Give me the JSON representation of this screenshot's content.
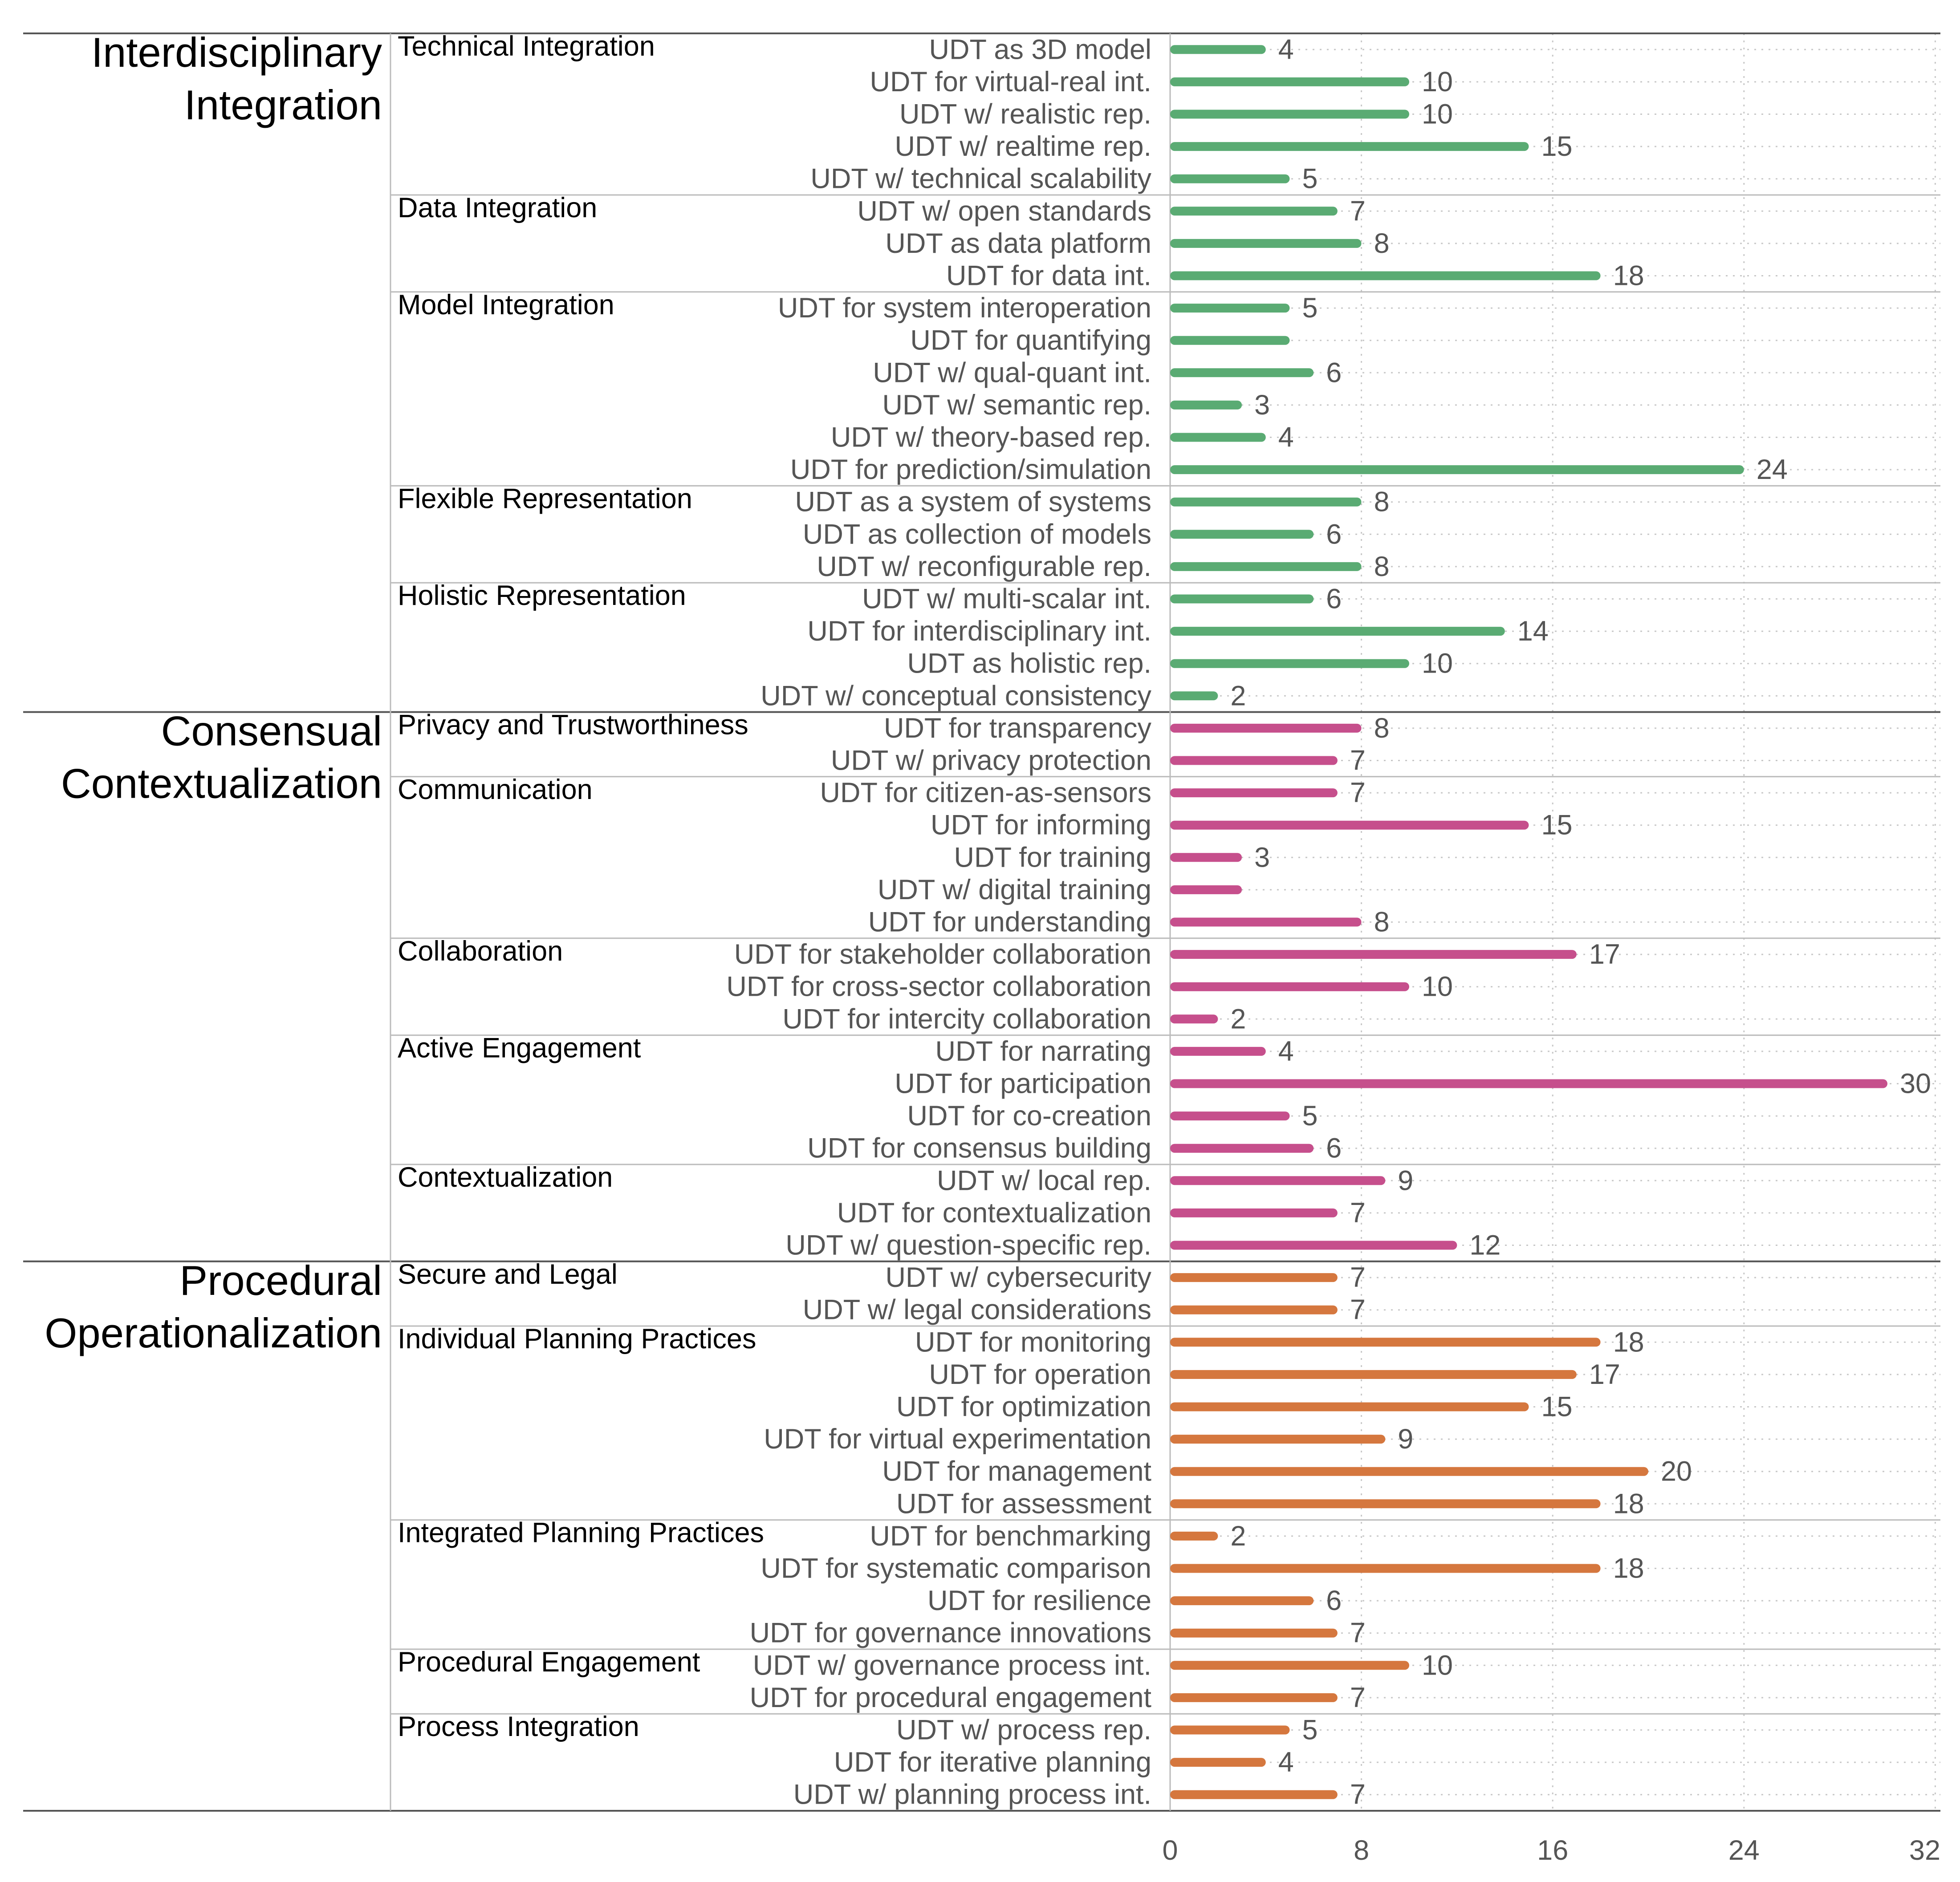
{
  "colors": {
    "interdisciplinary": "#5aab73",
    "consensual": "#c64f8c",
    "procedural": "#d5773e",
    "grid": "#c8c8c8",
    "rule": "#555555"
  },
  "chart_data": {
    "type": "bar",
    "orientation": "horizontal",
    "x_axis": {
      "ticks": [
        0,
        8,
        16,
        24,
        32
      ],
      "xlim": [
        0,
        32
      ]
    },
    "groups": [
      {
        "dimension": "Interdisciplinary Integration",
        "dimension_lines": [
          "Interdisciplinary",
          "Integration"
        ],
        "color_key": "interdisciplinary",
        "subgroups": [
          {
            "name": "Technical Integration",
            "items": [
              {
                "label": "UDT as 3D model",
                "value": 4
              },
              {
                "label": "UDT for virtual-real int.",
                "value": 10
              },
              {
                "label": "UDT w/ realistic rep.",
                "value": 10
              },
              {
                "label": "UDT w/ realtime rep.",
                "value": 15
              },
              {
                "label": "UDT w/ technical scalability",
                "value": 5
              }
            ]
          },
          {
            "name": "Data Integration",
            "items": [
              {
                "label": "UDT w/ open standards",
                "value": 7
              },
              {
                "label": "UDT as data platform",
                "value": 8
              },
              {
                "label": "UDT for data int.",
                "value": 18
              }
            ]
          },
          {
            "name": "Model Integration",
            "items": [
              {
                "label": "UDT for system interoperation",
                "value": 5
              },
              {
                "label": "UDT for quantifying",
                "value": 5,
                "show_value": false
              },
              {
                "label": "UDT w/ qual-quant int.",
                "value": 6
              },
              {
                "label": "UDT w/ semantic rep.",
                "value": 3
              },
              {
                "label": "UDT w/ theory-based rep.",
                "value": 4
              },
              {
                "label": "UDT for prediction/simulation",
                "value": 24
              }
            ]
          },
          {
            "name": "Flexible Representation",
            "items": [
              {
                "label": "UDT as a system of systems",
                "value": 8
              },
              {
                "label": "UDT as collection of models",
                "value": 6
              },
              {
                "label": "UDT w/ reconfigurable rep.",
                "value": 8
              }
            ]
          },
          {
            "name": "Holistic Representation",
            "items": [
              {
                "label": "UDT w/ multi-scalar int.",
                "value": 6
              },
              {
                "label": "UDT for interdisciplinary int.",
                "value": 14
              },
              {
                "label": "UDT as holistic rep.",
                "value": 10
              },
              {
                "label": "UDT w/ conceptual consistency",
                "value": 2
              }
            ]
          }
        ]
      },
      {
        "dimension": "Consensual Contextualization",
        "dimension_lines": [
          "Consensual",
          "Contextualization"
        ],
        "color_key": "consensual",
        "subgroups": [
          {
            "name": "Privacy and Trustworthiness",
            "items": [
              {
                "label": "UDT for transparency",
                "value": 8
              },
              {
                "label": "UDT w/ privacy protection",
                "value": 7
              }
            ]
          },
          {
            "name": "Communication",
            "items": [
              {
                "label": "UDT for citizen-as-sensors",
                "value": 7
              },
              {
                "label": "UDT for informing",
                "value": 15
              },
              {
                "label": "UDT for training",
                "value": 3
              },
              {
                "label": "UDT w/ digital training",
                "value": 3,
                "show_value": false
              },
              {
                "label": "UDT for understanding",
                "value": 8
              }
            ]
          },
          {
            "name": "Collaboration",
            "items": [
              {
                "label": "UDT for stakeholder collaboration",
                "value": 17
              },
              {
                "label": "UDT for cross-sector collaboration",
                "value": 10
              },
              {
                "label": "UDT for intercity collaboration",
                "value": 2
              }
            ]
          },
          {
            "name": "Active Engagement",
            "items": [
              {
                "label": "UDT for narrating",
                "value": 4
              },
              {
                "label": "UDT for participation",
                "value": 30
              },
              {
                "label": "UDT for co-creation",
                "value": 5
              },
              {
                "label": "UDT for consensus building",
                "value": 6
              }
            ]
          },
          {
            "name": "Contextualization",
            "items": [
              {
                "label": "UDT w/ local rep.",
                "value": 9
              },
              {
                "label": "UDT for contextualization",
                "value": 7
              },
              {
                "label": "UDT w/ question-specific rep.",
                "value": 12
              }
            ]
          }
        ]
      },
      {
        "dimension": "Procedural Operationalization",
        "dimension_lines": [
          "Procedural",
          "Operationalization"
        ],
        "color_key": "procedural",
        "subgroups": [
          {
            "name": "Secure and Legal",
            "items": [
              {
                "label": "UDT w/ cybersecurity",
                "value": 7
              },
              {
                "label": "UDT w/ legal considerations",
                "value": 7
              }
            ]
          },
          {
            "name": "Individual Planning Practices",
            "items": [
              {
                "label": "UDT for monitoring",
                "value": 18
              },
              {
                "label": "UDT for operation",
                "value": 17
              },
              {
                "label": "UDT for optimization",
                "value": 15
              },
              {
                "label": "UDT for virtual experimentation",
                "value": 9
              },
              {
                "label": "UDT for management",
                "value": 20
              },
              {
                "label": "UDT for assessment",
                "value": 18
              }
            ]
          },
          {
            "name": "Integrated Planning Practices",
            "items": [
              {
                "label": "UDT for benchmarking",
                "value": 2
              },
              {
                "label": "UDT for systematic comparison",
                "value": 18
              },
              {
                "label": "UDT for resilience",
                "value": 6
              },
              {
                "label": "UDT for governance innovations",
                "value": 7
              }
            ]
          },
          {
            "name": "Procedural Engagement",
            "items": [
              {
                "label": "UDT w/ governance process int.",
                "value": 10
              },
              {
                "label": "UDT for procedural engagement",
                "value": 7
              }
            ]
          },
          {
            "name": "Process Integration",
            "items": [
              {
                "label": "UDT w/ process rep.",
                "value": 5
              },
              {
                "label": "UDT for iterative planning",
                "value": 4
              },
              {
                "label": "UDT w/ planning process int.",
                "value": 7
              }
            ]
          }
        ]
      }
    ]
  }
}
